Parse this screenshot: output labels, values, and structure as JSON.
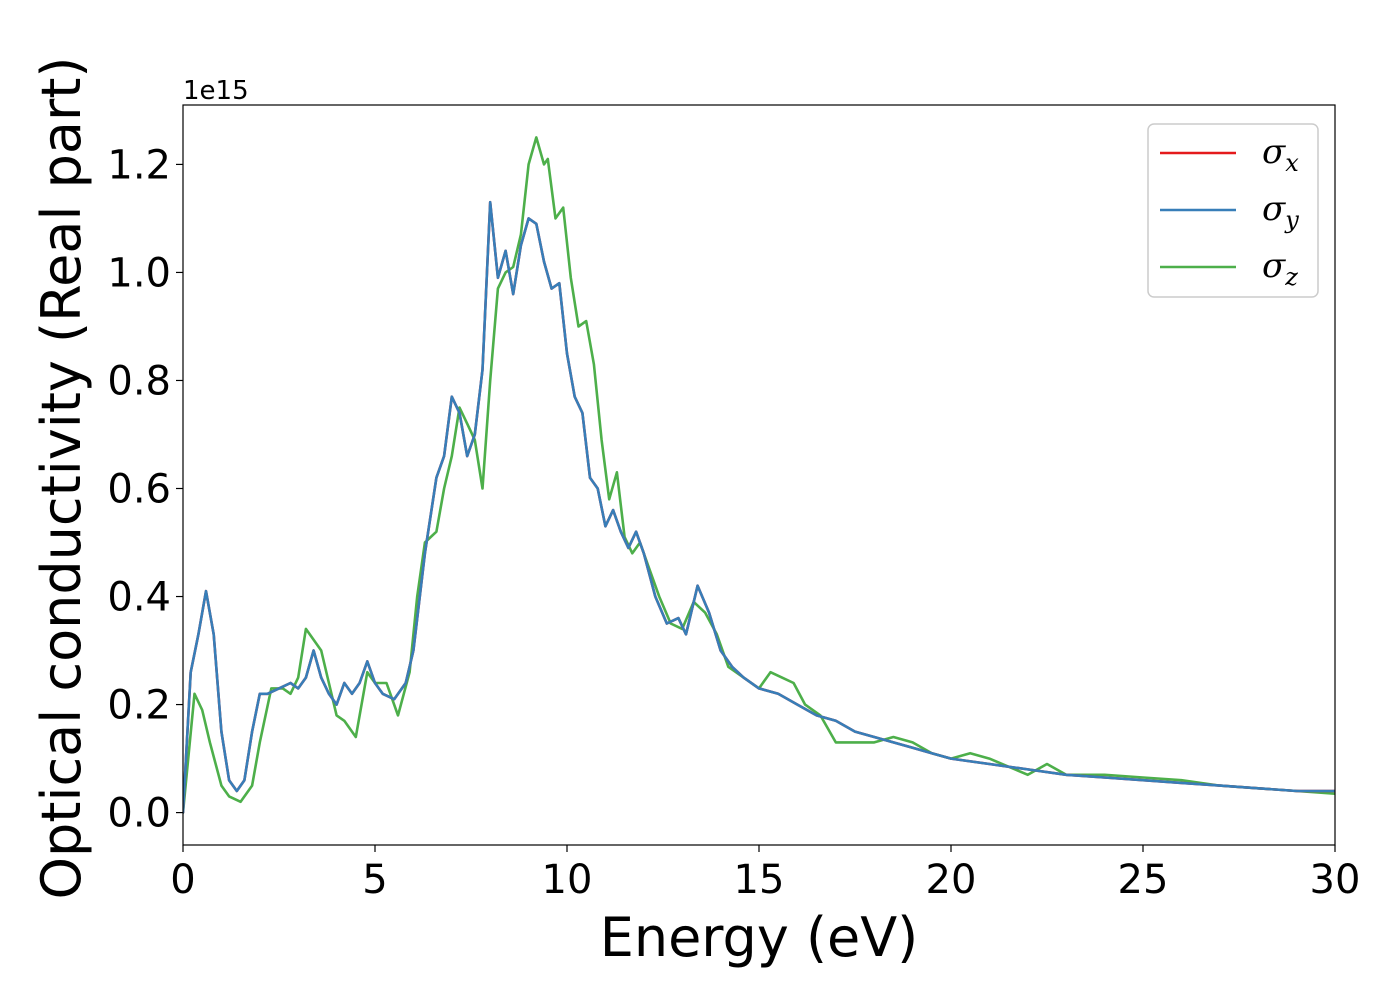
{
  "chart_data": {
    "type": "line",
    "title": "",
    "xlabel": "Energy (eV)",
    "ylabel": "Optical conductivity (Real part)",
    "y_offset_label": "1e15",
    "xlim": [
      0,
      30
    ],
    "ylim": [
      -0.06,
      1.31
    ],
    "x_ticks": [
      0,
      5,
      10,
      15,
      20,
      25,
      30
    ],
    "y_ticks": [
      0.0,
      0.2,
      0.4,
      0.6,
      0.8,
      1.0,
      1.2
    ],
    "x_tick_labels": [
      "0",
      "5",
      "10",
      "15",
      "20",
      "25",
      "30"
    ],
    "y_tick_labels": [
      "0.0",
      "0.2",
      "0.4",
      "0.6",
      "0.8",
      "1.0",
      "1.2"
    ],
    "grid": false,
    "legend_position": "top-right",
    "series": [
      {
        "name": "σx",
        "legend_symbol": "σ",
        "legend_sub": "x",
        "color": "#e41a1c",
        "x": [
          0,
          0.2,
          0.4,
          0.6,
          0.8,
          1.0,
          1.2,
          1.4,
          1.6,
          1.8,
          2.0,
          2.2,
          2.5,
          2.8,
          3.0,
          3.2,
          3.4,
          3.6,
          3.8,
          4.0,
          4.2,
          4.4,
          4.6,
          4.8,
          5.0,
          5.2,
          5.5,
          5.8,
          6.0,
          6.3,
          6.6,
          6.8,
          7.0,
          7.2,
          7.4,
          7.6,
          7.8,
          8.0,
          8.2,
          8.4,
          8.6,
          8.8,
          9.0,
          9.2,
          9.4,
          9.6,
          9.8,
          10.0,
          10.2,
          10.4,
          10.6,
          10.8,
          11.0,
          11.2,
          11.4,
          11.6,
          11.8,
          12.0,
          12.3,
          12.6,
          12.9,
          13.1,
          13.4,
          13.7,
          14.0,
          14.3,
          14.6,
          15.0,
          15.5,
          16.0,
          16.5,
          17.0,
          17.5,
          18.0,
          18.5,
          19.0,
          19.5,
          20.0,
          21.0,
          22.0,
          23.0,
          24.0,
          25.0,
          26.0,
          27.0,
          28.0,
          29.0,
          30.0
        ],
        "y": [
          0.0,
          0.26,
          0.33,
          0.41,
          0.33,
          0.15,
          0.06,
          0.04,
          0.06,
          0.15,
          0.22,
          0.22,
          0.23,
          0.24,
          0.23,
          0.25,
          0.3,
          0.25,
          0.22,
          0.2,
          0.24,
          0.22,
          0.24,
          0.28,
          0.24,
          0.22,
          0.21,
          0.24,
          0.3,
          0.48,
          0.62,
          0.66,
          0.77,
          0.74,
          0.66,
          0.7,
          0.82,
          1.13,
          0.99,
          1.04,
          0.96,
          1.05,
          1.1,
          1.09,
          1.02,
          0.97,
          0.98,
          0.85,
          0.77,
          0.74,
          0.62,
          0.6,
          0.53,
          0.56,
          0.52,
          0.49,
          0.52,
          0.48,
          0.4,
          0.35,
          0.36,
          0.33,
          0.42,
          0.37,
          0.3,
          0.27,
          0.25,
          0.23,
          0.22,
          0.2,
          0.18,
          0.17,
          0.15,
          0.14,
          0.13,
          0.12,
          0.11,
          0.1,
          0.09,
          0.08,
          0.07,
          0.065,
          0.06,
          0.055,
          0.05,
          0.045,
          0.04,
          0.04
        ]
      },
      {
        "name": "σy",
        "legend_symbol": "σ",
        "legend_sub": "y",
        "color": "#377eb8",
        "x": [
          0,
          0.2,
          0.4,
          0.6,
          0.8,
          1.0,
          1.2,
          1.4,
          1.6,
          1.8,
          2.0,
          2.2,
          2.5,
          2.8,
          3.0,
          3.2,
          3.4,
          3.6,
          3.8,
          4.0,
          4.2,
          4.4,
          4.6,
          4.8,
          5.0,
          5.2,
          5.5,
          5.8,
          6.0,
          6.3,
          6.6,
          6.8,
          7.0,
          7.2,
          7.4,
          7.6,
          7.8,
          8.0,
          8.2,
          8.4,
          8.6,
          8.8,
          9.0,
          9.2,
          9.4,
          9.6,
          9.8,
          10.0,
          10.2,
          10.4,
          10.6,
          10.8,
          11.0,
          11.2,
          11.4,
          11.6,
          11.8,
          12.0,
          12.3,
          12.6,
          12.9,
          13.1,
          13.4,
          13.7,
          14.0,
          14.3,
          14.6,
          15.0,
          15.5,
          16.0,
          16.5,
          17.0,
          17.5,
          18.0,
          18.5,
          19.0,
          19.5,
          20.0,
          21.0,
          22.0,
          23.0,
          24.0,
          25.0,
          26.0,
          27.0,
          28.0,
          29.0,
          30.0
        ],
        "y": [
          0.0,
          0.26,
          0.33,
          0.41,
          0.33,
          0.15,
          0.06,
          0.04,
          0.06,
          0.15,
          0.22,
          0.22,
          0.23,
          0.24,
          0.23,
          0.25,
          0.3,
          0.25,
          0.22,
          0.2,
          0.24,
          0.22,
          0.24,
          0.28,
          0.24,
          0.22,
          0.21,
          0.24,
          0.3,
          0.48,
          0.62,
          0.66,
          0.77,
          0.74,
          0.66,
          0.7,
          0.82,
          1.13,
          0.99,
          1.04,
          0.96,
          1.05,
          1.1,
          1.09,
          1.02,
          0.97,
          0.98,
          0.85,
          0.77,
          0.74,
          0.62,
          0.6,
          0.53,
          0.56,
          0.52,
          0.49,
          0.52,
          0.48,
          0.4,
          0.35,
          0.36,
          0.33,
          0.42,
          0.37,
          0.3,
          0.27,
          0.25,
          0.23,
          0.22,
          0.2,
          0.18,
          0.17,
          0.15,
          0.14,
          0.13,
          0.12,
          0.11,
          0.1,
          0.09,
          0.08,
          0.07,
          0.065,
          0.06,
          0.055,
          0.05,
          0.045,
          0.04,
          0.04
        ]
      },
      {
        "name": "σz",
        "legend_symbol": "σ",
        "legend_sub": "z",
        "color": "#4daf4a",
        "x": [
          0,
          0.3,
          0.5,
          0.7,
          1.0,
          1.2,
          1.5,
          1.8,
          2.0,
          2.3,
          2.6,
          2.8,
          3.0,
          3.2,
          3.4,
          3.6,
          3.8,
          4.0,
          4.2,
          4.5,
          4.8,
          5.0,
          5.3,
          5.6,
          5.9,
          6.1,
          6.3,
          6.6,
          6.8,
          7.0,
          7.2,
          7.4,
          7.6,
          7.8,
          8.0,
          8.2,
          8.4,
          8.6,
          8.8,
          9.0,
          9.2,
          9.4,
          9.5,
          9.7,
          9.9,
          10.1,
          10.3,
          10.5,
          10.7,
          10.9,
          11.1,
          11.3,
          11.5,
          11.7,
          11.9,
          12.1,
          12.4,
          12.7,
          13.0,
          13.3,
          13.6,
          13.9,
          14.2,
          14.6,
          15.0,
          15.3,
          15.6,
          15.9,
          16.2,
          16.6,
          17.0,
          17.5,
          18.0,
          18.5,
          19.0,
          19.5,
          20.0,
          20.5,
          21.0,
          22.0,
          22.5,
          23.0,
          24.0,
          25.0,
          26.0,
          27.0,
          28.0,
          29.0,
          30.0
        ],
        "y": [
          0.0,
          0.22,
          0.19,
          0.13,
          0.05,
          0.03,
          0.02,
          0.05,
          0.13,
          0.23,
          0.23,
          0.22,
          0.25,
          0.34,
          0.32,
          0.3,
          0.24,
          0.18,
          0.17,
          0.14,
          0.26,
          0.24,
          0.24,
          0.18,
          0.26,
          0.4,
          0.5,
          0.52,
          0.6,
          0.66,
          0.75,
          0.72,
          0.69,
          0.6,
          0.8,
          0.97,
          1.0,
          1.01,
          1.07,
          1.2,
          1.25,
          1.2,
          1.21,
          1.1,
          1.12,
          0.99,
          0.9,
          0.91,
          0.83,
          0.69,
          0.58,
          0.63,
          0.51,
          0.48,
          0.5,
          0.46,
          0.4,
          0.35,
          0.34,
          0.39,
          0.37,
          0.33,
          0.27,
          0.25,
          0.23,
          0.26,
          0.25,
          0.24,
          0.2,
          0.18,
          0.13,
          0.13,
          0.13,
          0.14,
          0.13,
          0.11,
          0.1,
          0.11,
          0.1,
          0.07,
          0.09,
          0.07,
          0.07,
          0.065,
          0.06,
          0.05,
          0.045,
          0.04,
          0.035
        ]
      }
    ]
  }
}
